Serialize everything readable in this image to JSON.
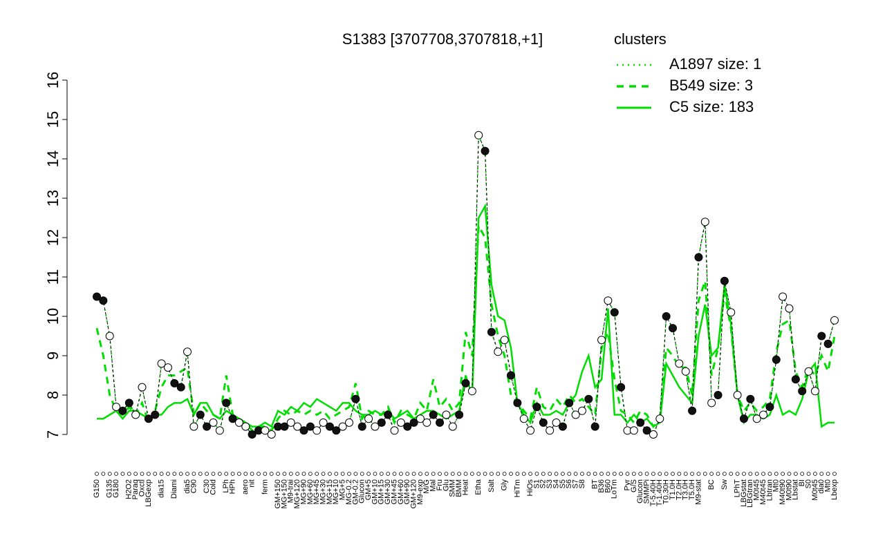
{
  "chart_data": {
    "type": "line",
    "title": "S1383 [3707708,3707818,+1]",
    "legend_title": "clusters",
    "legend_color": "#00dd00",
    "ylim": [
      7,
      16
    ],
    "yticks": [
      7,
      8,
      9,
      10,
      11,
      12,
      13,
      14,
      15,
      16
    ],
    "categories": [
      "G150",
      null,
      "G135",
      "G180",
      null,
      "H2O2",
      "Paraq",
      "Oxctl",
      "LBGexp",
      null,
      "dia15",
      null,
      "Diami",
      null,
      "dia5",
      "C90",
      null,
      "C30",
      "Cold",
      null,
      "LPh",
      "HPh",
      null,
      "aero",
      "nit",
      null,
      "ferm",
      null,
      "GM+150",
      "MG+150",
      "M9-trai",
      "MG+120",
      "MG+90",
      "MG+60",
      "MG+45",
      "MG+30",
      "MG+15",
      "MG+10",
      "MG+5",
      "MG-0.2",
      "GM-0.2",
      "Glucon",
      "GM+5",
      "GM+10",
      "GM+15",
      "GM+30",
      "GM+45",
      "GM+60",
      "GM+90",
      "GM+120",
      "M9-exp",
      "M/G",
      "Mal",
      "Fru",
      "Glu",
      "SMM",
      "BMM",
      "Heat",
      null,
      "Etha",
      null,
      "Salt",
      null,
      "Gly",
      null,
      "HiTm",
      null,
      "HiOs",
      "S1",
      "S2",
      "S3",
      "S4",
      "S5",
      "S6",
      "S7",
      "S8",
      null,
      "BT",
      "B36",
      "B60",
      "LoTm",
      null,
      "Pyr",
      "G/S",
      "Glucon",
      "SMMPi",
      "T-5.40H",
      "T-1.40H",
      "T0.30H",
      "T1.0H",
      "T2.0H",
      "T3.0H",
      "T5.0H",
      "M9-stat",
      null,
      "BC",
      null,
      "Sw",
      null,
      "LPhT",
      "LBGstat",
      "LBGtran",
      "M0t45",
      "M40t45",
      "Lbtran",
      "Mt0",
      "M40t90",
      "M0t90",
      "Lbstat",
      "BI",
      "S0",
      "M0t45",
      "dia0",
      "Mt0",
      "Lbexp"
    ],
    "series": [
      {
        "name": "A1897 size: 1",
        "color": "#00dd00",
        "dash": "dotted",
        "values": [
          10.5,
          10.4,
          9.5,
          7.7,
          7.6,
          7.8,
          7.5,
          8.2,
          7.4,
          7.5,
          8.8,
          8.7,
          8.3,
          8.2,
          9.1,
          7.2,
          7.5,
          7.2,
          7.3,
          7.1,
          7.8,
          7.4,
          7.3,
          7.2,
          7.0,
          7.1,
          7.1,
          7.0,
          7.2,
          7.2,
          7.3,
          7.2,
          7.1,
          7.2,
          7.1,
          7.3,
          7.2,
          7.1,
          7.2,
          7.3,
          7.9,
          7.2,
          7.4,
          7.2,
          7.3,
          7.5,
          7.1,
          7.3,
          7.2,
          7.3,
          7.4,
          7.3,
          7.5,
          7.3,
          7.5,
          7.2,
          7.5,
          8.3,
          8.1,
          14.6,
          14.2,
          9.6,
          9.1,
          9.4,
          8.5,
          7.8,
          7.4,
          7.1,
          7.7,
          7.3,
          7.1,
          7.3,
          7.2,
          7.8,
          7.5,
          7.6,
          7.9,
          7.2,
          9.4,
          10.4,
          10.1,
          8.2,
          7.1,
          7.1,
          7.3,
          7.1,
          7.0,
          7.4,
          10.0,
          9.7,
          8.8,
          8.6,
          7.6,
          11.5,
          12.4,
          7.8,
          8.0,
          10.9,
          10.1,
          8.0,
          7.4,
          7.9,
          7.4,
          7.5,
          7.7,
          8.9,
          10.5,
          10.2,
          8.4,
          8.1,
          8.6,
          8.1,
          9.5,
          9.3,
          9.9
        ]
      },
      {
        "name": "B549 size: 3",
        "color": "#00dd00",
        "dash": "dashed",
        "values": [
          9.7,
          9.0,
          8.0,
          7.6,
          7.5,
          7.7,
          7.5,
          7.8,
          7.3,
          7.6,
          8.2,
          8.5,
          8.5,
          8.6,
          8.7,
          7.5,
          7.8,
          7.6,
          7.5,
          7.4,
          8.5,
          7.5,
          7.4,
          7.3,
          7.1,
          7.2,
          7.2,
          7.1,
          7.4,
          7.6,
          7.5,
          7.6,
          7.5,
          7.6,
          7.5,
          7.6,
          7.4,
          7.5,
          7.6,
          7.7,
          8.3,
          7.4,
          7.6,
          7.5,
          7.5,
          7.7,
          7.3,
          7.6,
          7.5,
          7.4,
          7.8,
          7.6,
          8.4,
          7.7,
          7.9,
          7.6,
          7.8,
          9.6,
          9.0,
          12.3,
          12.0,
          10.3,
          9.5,
          9.0,
          8.0,
          7.8,
          7.6,
          7.4,
          8.2,
          7.7,
          7.6,
          7.9,
          7.7,
          8.0,
          7.8,
          7.9,
          7.7,
          7.5,
          9.2,
          9.6,
          8.4,
          7.6,
          7.5,
          7.3,
          7.6,
          7.5,
          7.2,
          7.4,
          9.2,
          9.0,
          8.7,
          8.7,
          8.0,
          10.4,
          10.9,
          8.5,
          9.2,
          10.6,
          9.7,
          8.0,
          7.6,
          7.8,
          7.6,
          7.7,
          7.9,
          9.1,
          9.8,
          9.9,
          8.6,
          8.2,
          8.7,
          8.5,
          9.0,
          8.6,
          9.5
        ]
      },
      {
        "name": "C5 size: 183",
        "color": "#00dd00",
        "dash": "solid",
        "values": [
          7.4,
          7.4,
          7.5,
          7.6,
          7.4,
          7.6,
          7.6,
          7.5,
          7.4,
          7.5,
          7.5,
          7.7,
          7.8,
          7.8,
          7.9,
          7.5,
          7.8,
          7.8,
          7.5,
          7.4,
          7.6,
          7.5,
          7.4,
          7.3,
          7.2,
          7.2,
          7.3,
          7.2,
          7.6,
          7.5,
          7.7,
          7.6,
          7.8,
          7.7,
          7.9,
          7.8,
          7.7,
          7.6,
          7.8,
          7.8,
          7.6,
          7.5,
          7.5,
          7.6,
          7.5,
          7.6,
          7.4,
          7.5,
          7.6,
          7.4,
          7.5,
          7.6,
          7.6,
          7.5,
          7.4,
          7.5,
          7.6,
          8.5,
          8.0,
          12.5,
          12.8,
          10.8,
          10.0,
          9.9,
          9.2,
          7.8,
          7.5,
          7.3,
          7.8,
          7.5,
          7.5,
          7.6,
          7.5,
          7.8,
          8.0,
          8.6,
          9.0,
          8.2,
          8.4,
          10.2,
          7.5,
          7.5,
          7.3,
          7.5,
          7.3,
          7.4,
          7.2,
          7.3,
          8.8,
          8.5,
          8.2,
          8.0,
          7.8,
          9.5,
          10.3,
          9.0,
          9.2,
          10.8,
          9.8,
          8.0,
          7.3,
          7.5,
          7.5,
          7.4,
          7.5,
          8.0,
          7.5,
          7.6,
          7.5,
          7.9,
          8.6,
          8.8,
          7.2,
          7.3,
          7.3
        ]
      }
    ]
  }
}
